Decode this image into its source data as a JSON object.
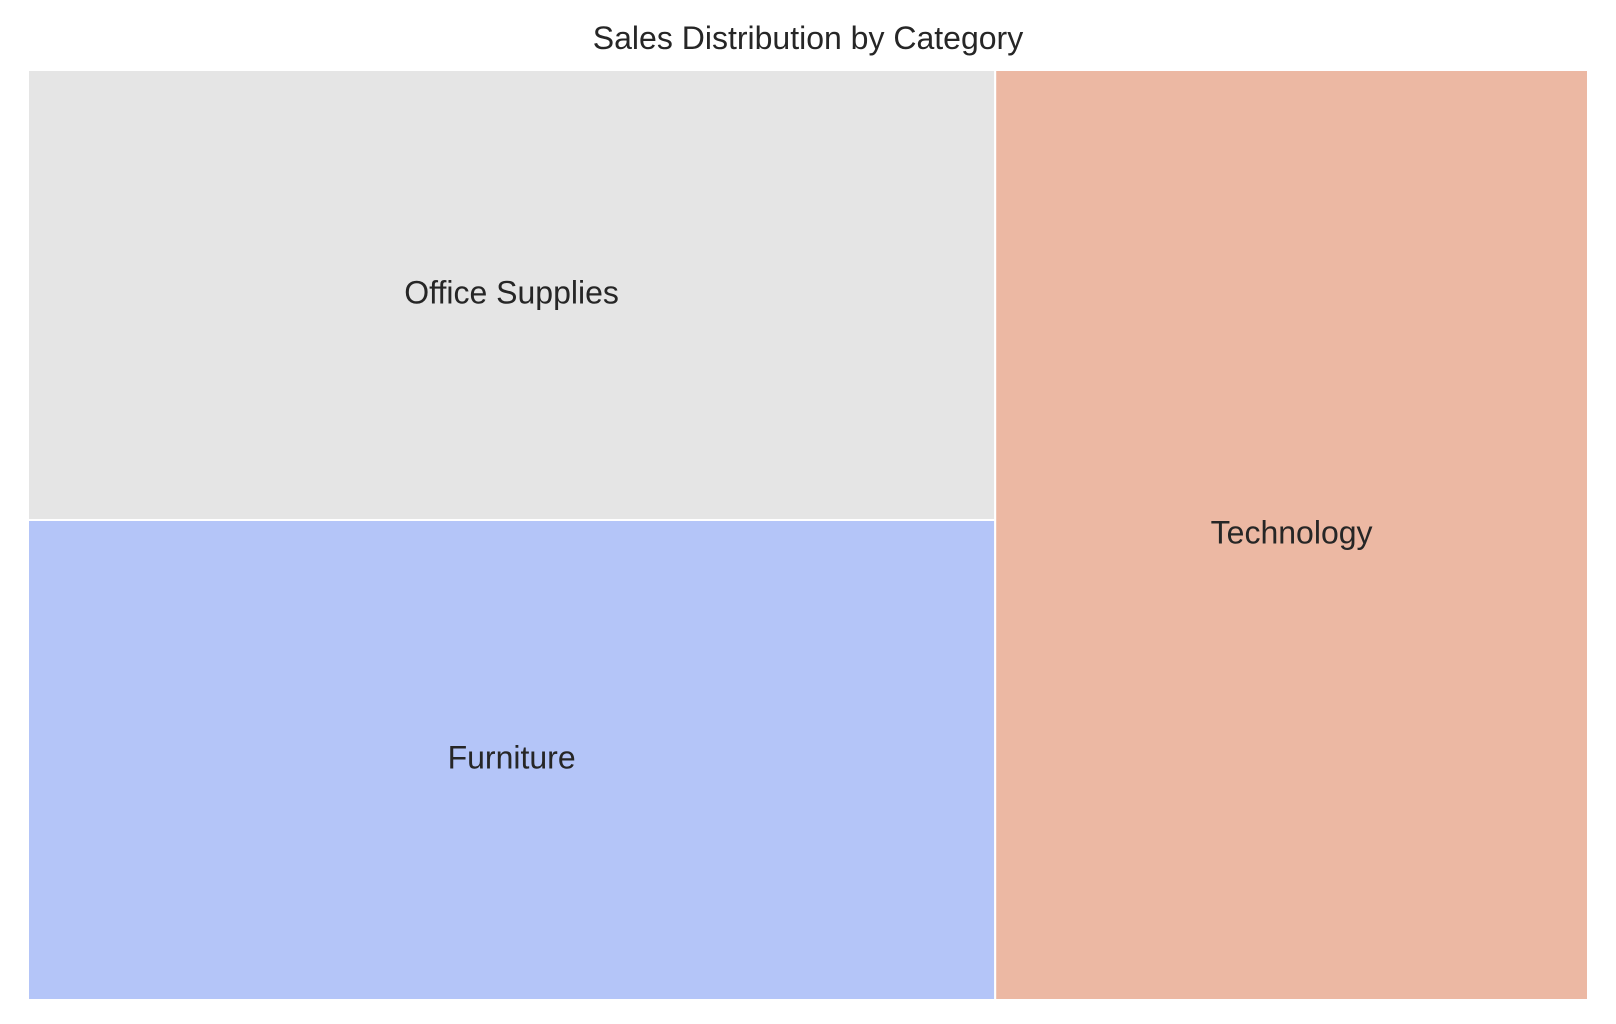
{
  "chart_data": {
    "type": "treemap",
    "title": "Sales Distribution by Category",
    "categories": [
      "Office Supplies",
      "Furniture",
      "Technology"
    ],
    "values": [
      0.3,
      0.32,
      0.38
    ],
    "colors": [
      "#e5e5e5",
      "#b4c5f8",
      "#ecb8a3"
    ],
    "border_color": "#ffffff"
  }
}
